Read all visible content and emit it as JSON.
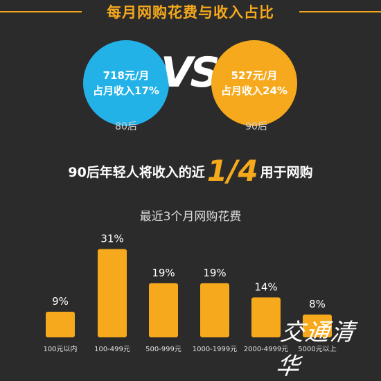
{
  "header": {
    "title": "每月网购花费与收入占比"
  },
  "comparison": {
    "left": {
      "line1": "718元/月",
      "line2": "占月收入17%",
      "label": "80后"
    },
    "vs": "VS",
    "right": {
      "line1": "527元/月",
      "line2": "占月收入24%",
      "label": "90后"
    }
  },
  "headline": {
    "before": "90后年轻人将收入的近",
    "fraction": "1/4",
    "after": "用于网购"
  },
  "chart_data": {
    "type": "bar",
    "title": "最近3个月网购花费",
    "categories": [
      "100元以内",
      "100-499元",
      "500-999元",
      "1000-1999元",
      "2000-4999元",
      "5000元以上"
    ],
    "values": [
      9,
      31,
      19,
      19,
      14,
      8
    ],
    "value_labels": [
      "9%",
      "31%",
      "19%",
      "19%",
      "14%",
      "8%"
    ],
    "unit": "%",
    "ylim": [
      0,
      35
    ],
    "grid": false,
    "bar_color": "#f6a91c"
  },
  "watermark": "交通清华"
}
